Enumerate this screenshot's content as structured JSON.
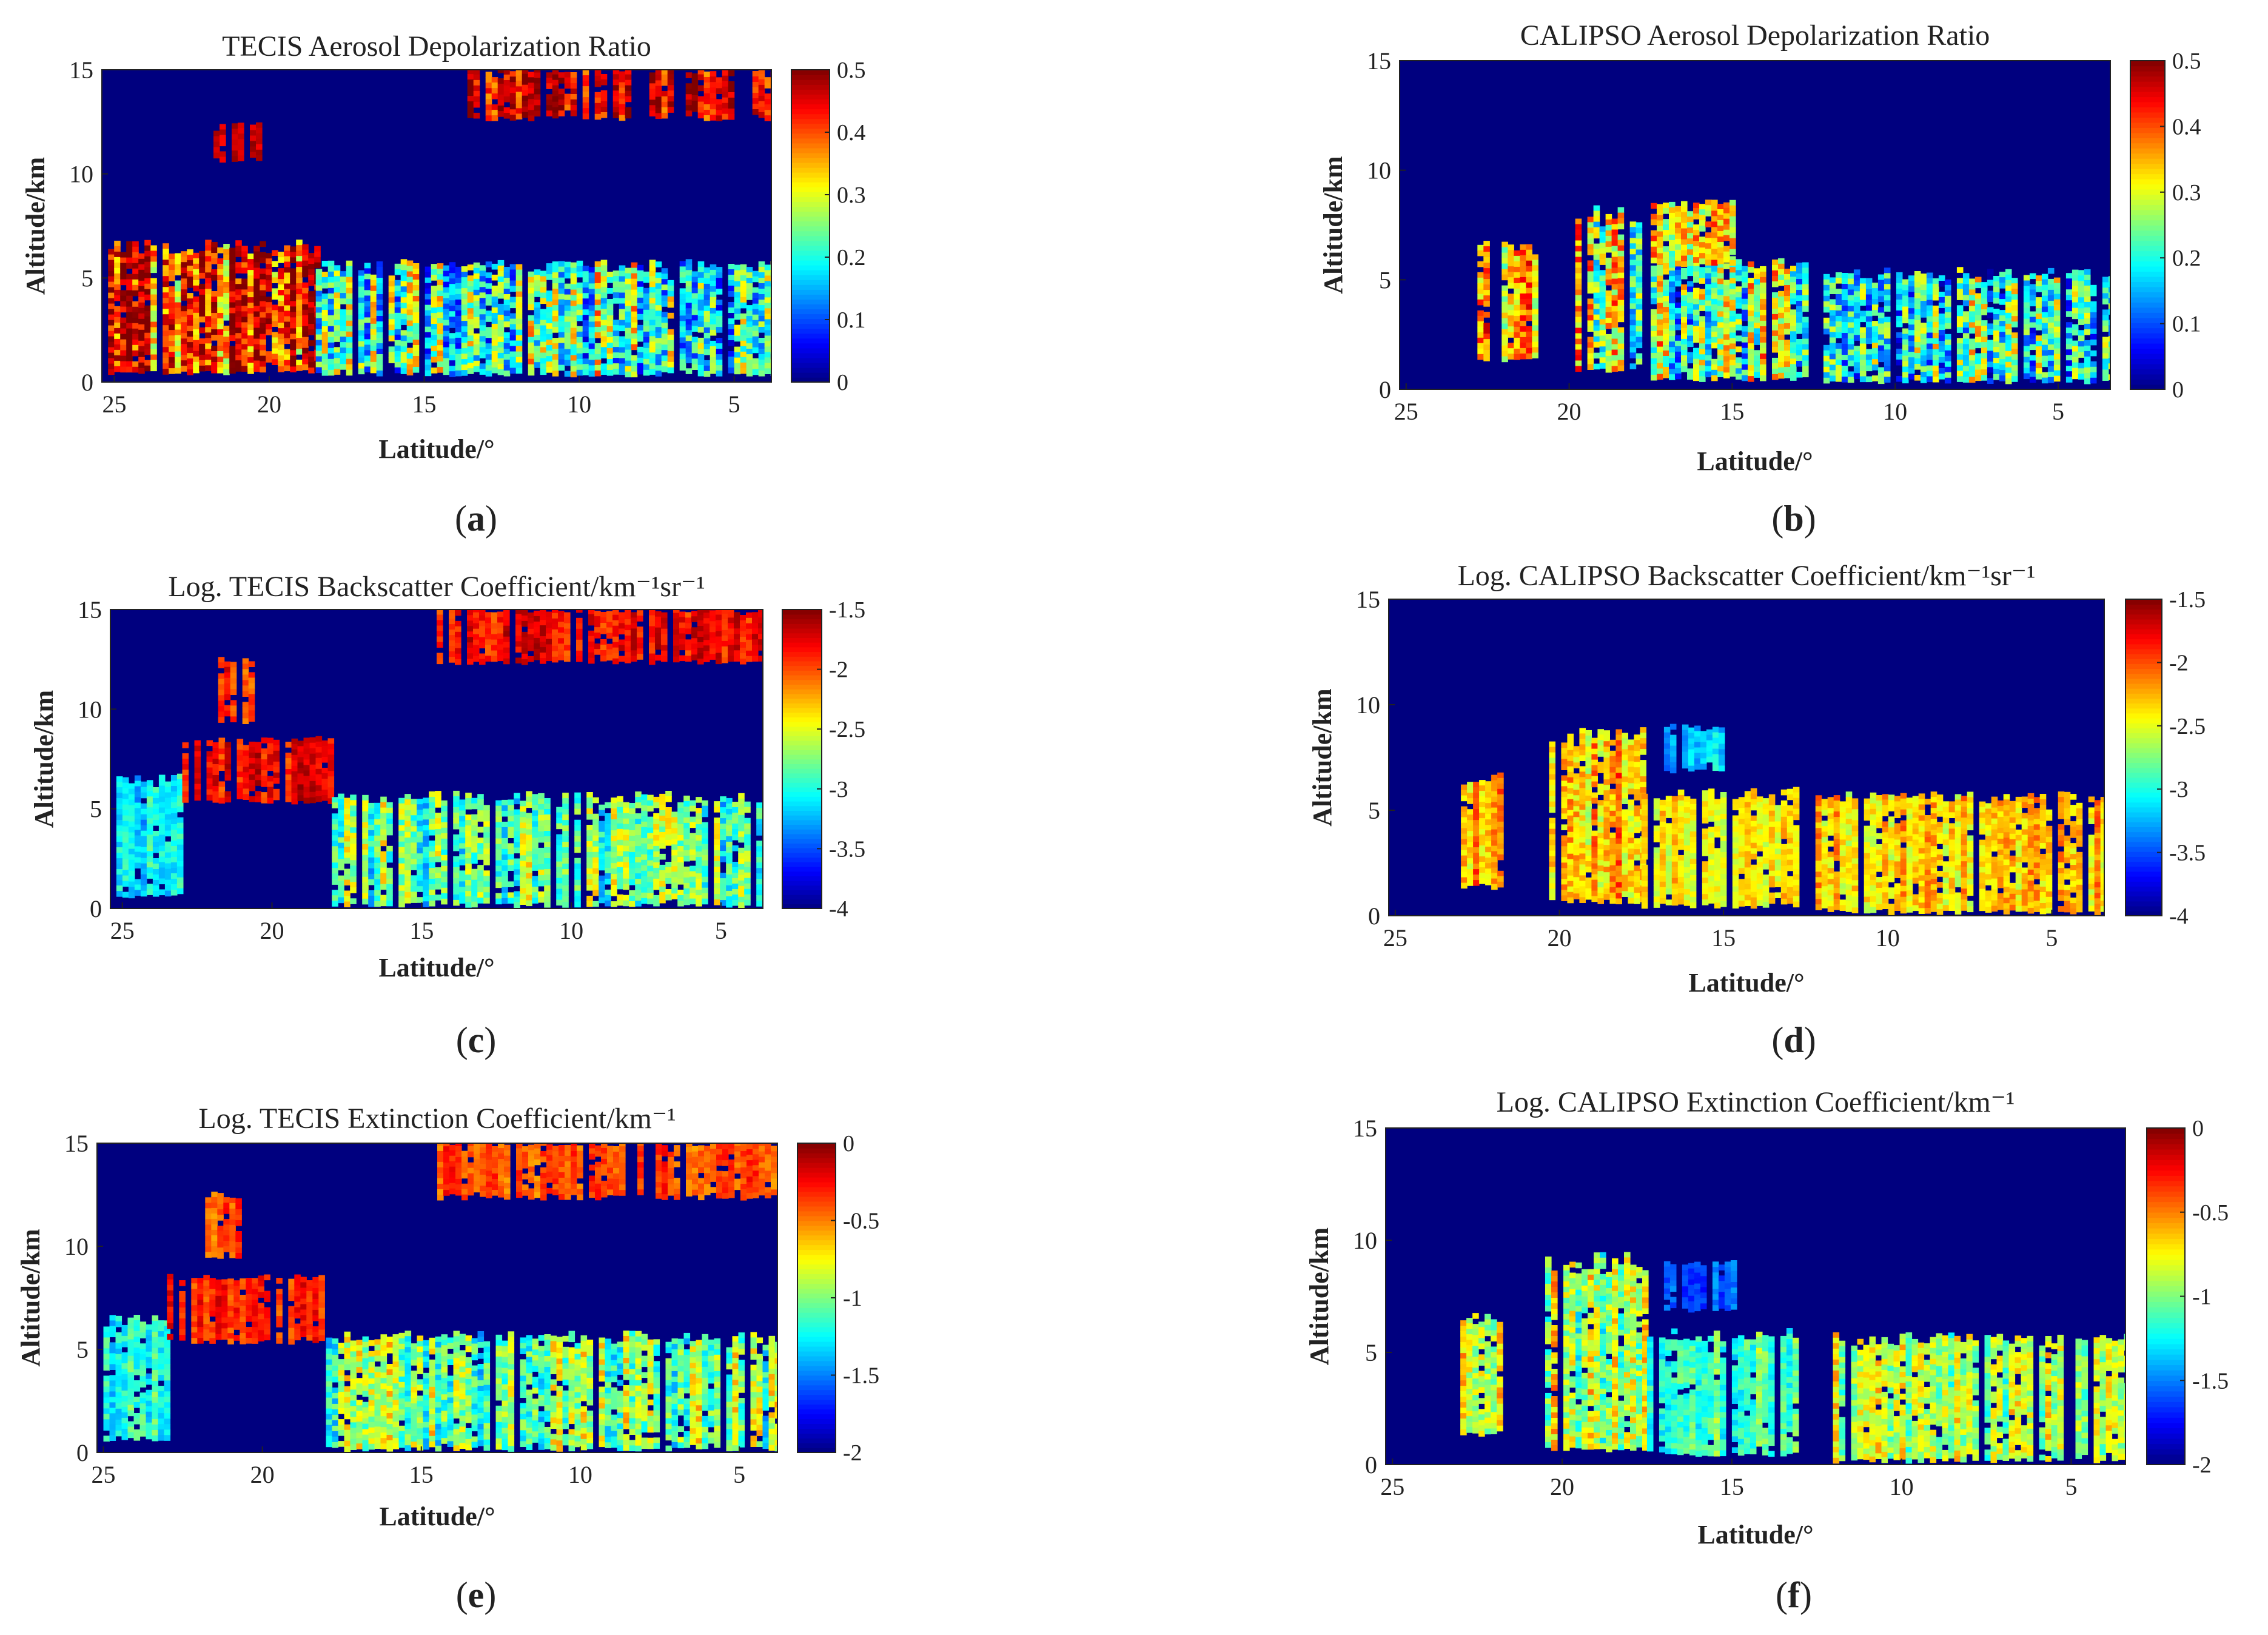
{
  "figure": {
    "description_labels": [
      "(a)",
      "(b)",
      "(c)",
      "(d)",
      "(e)",
      "(f)"
    ]
  },
  "colors": {
    "jet": [
      "#00007f",
      "#0000ff",
      "#007fff",
      "#00ffff",
      "#7fff7f",
      "#ffff00",
      "#ff7f00",
      "#ff0000",
      "#7f0000"
    ],
    "background": "#00007f"
  },
  "chart_data": [
    {
      "id": "a",
      "letter": "a",
      "type": "heatmap",
      "title": "TECIS Aerosol Depolarization Ratio",
      "xlabel": "Latitude/°",
      "ylabel": "Altitude/km",
      "xlim": [
        25.4,
        3.8
      ],
      "ylim": [
        0,
        15
      ],
      "xticks": [
        "25",
        "20",
        "15",
        "10",
        "5"
      ],
      "xtick_values": [
        25,
        20,
        15,
        10,
        5
      ],
      "yticks": [
        "0",
        "5",
        "10",
        "15"
      ],
      "ytick_values": [
        0,
        5,
        10,
        15
      ],
      "colorbar": {
        "min": 0,
        "max": 0.5,
        "ticks": [
          "0",
          "0.1",
          "0.2",
          "0.3",
          "0.4",
          "0.5"
        ],
        "tick_values": [
          0,
          0.1,
          0.2,
          0.3,
          0.4,
          0.5
        ]
      },
      "layers": [
        {
          "lat": [
            25.2,
            18.5
          ],
          "alt": [
            0.6,
            6.5
          ],
          "value": 0.42,
          "spread": 0.18
        },
        {
          "lat": [
            18.5,
            3.8
          ],
          "alt": [
            0.5,
            5.6
          ],
          "value": 0.22,
          "spread": 0.2
        },
        {
          "lat": [
            14.0,
            3.8
          ],
          "alt": [
            12.8,
            15.0
          ],
          "value": 0.45,
          "spread": 0.1
        },
        {
          "lat": [
            21.8,
            20.4
          ],
          "alt": [
            10.8,
            12.4
          ],
          "value": 0.45,
          "spread": 0.05
        }
      ]
    },
    {
      "id": "b",
      "letter": "b",
      "type": "heatmap",
      "title": "CALIPSO Aerosol Depolarization Ratio",
      "xlabel": "Latitude/°",
      "ylabel": "Altitude/km",
      "xlim": [
        25.2,
        3.4
      ],
      "ylim": [
        0,
        15
      ],
      "xticks": [
        "25",
        "20",
        "15",
        "10",
        "5"
      ],
      "xtick_values": [
        25,
        20,
        15,
        10,
        5
      ],
      "yticks": [
        "0",
        "5",
        "10",
        "15"
      ],
      "ytick_values": [
        0,
        5,
        10,
        15
      ],
      "colorbar": {
        "min": 0,
        "max": 0.5,
        "ticks": [
          "0",
          "0.1",
          "0.2",
          "0.3",
          "0.4",
          "0.5"
        ],
        "tick_values": [
          0,
          0.1,
          0.2,
          0.3,
          0.4,
          0.5
        ]
      },
      "layers": [
        {
          "lat": [
            23.0,
            21.0
          ],
          "alt": [
            1.5,
            6.5
          ],
          "value": 0.35,
          "spread": 0.15
        },
        {
          "lat": [
            20.0,
            17.5
          ],
          "alt": [
            1.0,
            8.0
          ],
          "value": 0.3,
          "spread": 0.2
        },
        {
          "lat": [
            17.5,
            12.8
          ],
          "alt": [
            0.6,
            5.8
          ],
          "value": 0.25,
          "spread": 0.2
        },
        {
          "lat": [
            12.2,
            3.4
          ],
          "alt": [
            0.5,
            5.3
          ],
          "value": 0.2,
          "spread": 0.2
        },
        {
          "lat": [
            17.5,
            15.0
          ],
          "alt": [
            5.8,
            8.5
          ],
          "value": 0.3,
          "spread": 0.15
        }
      ]
    },
    {
      "id": "c",
      "letter": "c",
      "type": "heatmap",
      "title": "Log. TECIS Backscatter Coefficient/km⁻¹sr⁻¹",
      "xlabel": "Latitude/°",
      "ylabel": "Altitude/km",
      "xlim": [
        25.4,
        3.6
      ],
      "ylim": [
        0,
        15
      ],
      "xticks": [
        "25",
        "20",
        "15",
        "10",
        "5"
      ],
      "xtick_values": [
        25,
        20,
        15,
        10,
        5
      ],
      "yticks": [
        "0",
        "5",
        "10",
        "15"
      ],
      "ytick_values": [
        0,
        5,
        10,
        15
      ],
      "colorbar": {
        "min": -4,
        "max": -1.5,
        "ticks": [
          "-4",
          "-3.5",
          "-3",
          "-2.5",
          "-2",
          "-1.5"
        ],
        "tick_values": [
          -4,
          -3.5,
          -3,
          -2.5,
          -2,
          -1.5
        ]
      },
      "layers": [
        {
          "lat": [
            25.2,
            23.0
          ],
          "alt": [
            0.8,
            6.5
          ],
          "value": -3.1,
          "spread": 0.4
        },
        {
          "lat": [
            23.0,
            18.0
          ],
          "alt": [
            5.5,
            8.5
          ],
          "value": -1.8,
          "spread": 0.3
        },
        {
          "lat": [
            18.0,
            3.6
          ],
          "alt": [
            0.3,
            5.6
          ],
          "value": -2.8,
          "spread": 0.6
        },
        {
          "lat": [
            14.5,
            3.6
          ],
          "alt": [
            12.5,
            15.0
          ],
          "value": -1.8,
          "spread": 0.3
        },
        {
          "lat": [
            21.8,
            20.6
          ],
          "alt": [
            9.5,
            12.5
          ],
          "value": -1.9,
          "spread": 0.3
        }
      ]
    },
    {
      "id": "d",
      "letter": "d",
      "type": "heatmap",
      "title": "Log. CALIPSO Backscatter Coefficient/km⁻¹sr⁻¹",
      "xlabel": "Latitude/°",
      "ylabel": "Altitude/km",
      "xlim": [
        25.2,
        3.4
      ],
      "ylim": [
        0,
        15
      ],
      "xticks": [
        "25",
        "20",
        "15",
        "10",
        "5"
      ],
      "xtick_values": [
        25,
        20,
        15,
        10,
        5
      ],
      "yticks": [
        "0",
        "5",
        "10",
        "15"
      ],
      "ytick_values": [
        0,
        5,
        10,
        15
      ],
      "colorbar": {
        "min": -4,
        "max": -1.5,
        "ticks": [
          "-4",
          "-3.5",
          "-3",
          "-2.5",
          "-2",
          "-1.5"
        ],
        "tick_values": [
          -4,
          -3.5,
          -3,
          -2.5,
          -2,
          -1.5
        ]
      },
      "layers": [
        {
          "lat": [
            23.0,
            21.8
          ],
          "alt": [
            1.5,
            6.5
          ],
          "value": -2.2,
          "spread": 0.4
        },
        {
          "lat": [
            20.5,
            17.5
          ],
          "alt": [
            0.8,
            8.5
          ],
          "value": -2.3,
          "spread": 0.5
        },
        {
          "lat": [
            17.5,
            12.8
          ],
          "alt": [
            0.6,
            5.8
          ],
          "value": -2.4,
          "spread": 0.3
        },
        {
          "lat": [
            12.2,
            3.4
          ],
          "alt": [
            0.3,
            5.6
          ],
          "value": -2.3,
          "spread": 0.4
        },
        {
          "lat": [
            17.0,
            15.0
          ],
          "alt": [
            7.0,
            9.0
          ],
          "value": -3.2,
          "spread": 0.3
        }
      ]
    },
    {
      "id": "e",
      "letter": "e",
      "type": "heatmap",
      "title": "Log. TECIS Extinction Coefficient/km⁻¹",
      "xlabel": "Latitude/°",
      "ylabel": "Altitude/km",
      "xlim": [
        25.2,
        3.8
      ],
      "ylim": [
        0,
        15
      ],
      "xticks": [
        "25",
        "20",
        "15",
        "10",
        "5"
      ],
      "xtick_values": [
        25,
        20,
        15,
        10,
        5
      ],
      "yticks": [
        "0",
        "5",
        "10",
        "15"
      ],
      "ytick_values": [
        0,
        5,
        10,
        15
      ],
      "colorbar": {
        "min": -2,
        "max": 0,
        "ticks": [
          "-2",
          "-1.5",
          "-1",
          "-0.5",
          "0"
        ],
        "tick_values": [
          -2,
          -1.5,
          -1,
          -0.5,
          0
        ]
      },
      "layers": [
        {
          "lat": [
            25.0,
            23.0
          ],
          "alt": [
            0.8,
            6.5
          ],
          "value": -1.2,
          "spread": 0.3
        },
        {
          "lat": [
            23.0,
            18.0
          ],
          "alt": [
            5.5,
            8.5
          ],
          "value": -0.3,
          "spread": 0.2
        },
        {
          "lat": [
            18.0,
            3.8
          ],
          "alt": [
            0.3,
            5.6
          ],
          "value": -1.0,
          "spread": 0.5
        },
        {
          "lat": [
            14.5,
            3.8
          ],
          "alt": [
            12.5,
            15.0
          ],
          "value": -0.4,
          "spread": 0.2
        },
        {
          "lat": [
            21.8,
            20.6
          ],
          "alt": [
            9.5,
            12.5
          ],
          "value": -0.4,
          "spread": 0.2
        }
      ]
    },
    {
      "id": "f",
      "letter": "f",
      "type": "heatmap",
      "title": "Log. CALIPSO  Extinction Coefficient/km⁻¹",
      "xlabel": "Latitude/°",
      "ylabel": "Altitude/km",
      "xlim": [
        25.2,
        3.4
      ],
      "ylim": [
        0,
        15
      ],
      "xticks": [
        "25",
        "20",
        "15",
        "10",
        "5"
      ],
      "xtick_values": [
        25,
        20,
        15,
        10,
        5
      ],
      "yticks": [
        "0",
        "5",
        "10",
        "15"
      ],
      "ytick_values": [
        0,
        5,
        10,
        15
      ],
      "colorbar": {
        "min": -2,
        "max": 0,
        "ticks": [
          "-2",
          "-1.5",
          "-1",
          "-0.5",
          "0"
        ],
        "tick_values": [
          -2,
          -1.5,
          -1,
          -0.5,
          0
        ]
      },
      "layers": [
        {
          "lat": [
            23.0,
            21.8
          ],
          "alt": [
            1.5,
            6.5
          ],
          "value": -0.8,
          "spread": 0.4
        },
        {
          "lat": [
            20.5,
            17.5
          ],
          "alt": [
            0.8,
            9.0
          ],
          "value": -0.9,
          "spread": 0.5
        },
        {
          "lat": [
            17.5,
            12.8
          ],
          "alt": [
            0.6,
            5.8
          ],
          "value": -1.1,
          "spread": 0.3
        },
        {
          "lat": [
            12.2,
            3.4
          ],
          "alt": [
            0.3,
            5.6
          ],
          "value": -0.9,
          "spread": 0.4
        },
        {
          "lat": [
            17.0,
            15.0
          ],
          "alt": [
            7.0,
            9.0
          ],
          "value": -1.6,
          "spread": 0.2
        }
      ]
    }
  ]
}
